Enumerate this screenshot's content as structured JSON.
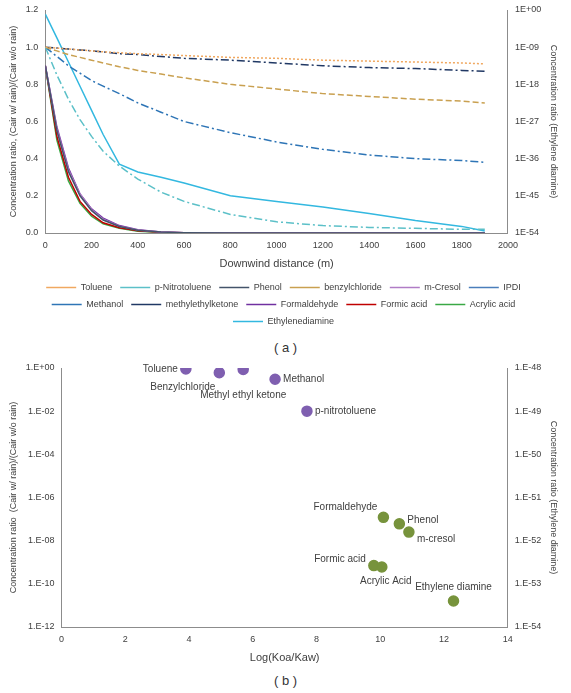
{
  "chart_data": [
    {
      "type": "line",
      "title": "( a )",
      "xlabel": "Downwind distance (m)",
      "ylabel": "Concentration ratio, (Cair w/ rain)/(Cair w/o rain)",
      "y2label": "Concentration ratio (Ethylene diamine)",
      "x": [
        0,
        50,
        100,
        150,
        200,
        250,
        320,
        400,
        500,
        600,
        800,
        1000,
        1200,
        1400,
        1600,
        1800,
        1900
      ],
      "xlim": [
        0,
        2000
      ],
      "xticks": [
        0,
        200,
        400,
        600,
        800,
        1000,
        1200,
        1400,
        1600,
        1800,
        2000
      ],
      "ylim": [
        0,
        1.2
      ],
      "yticks": [
        {
          "value": 0,
          "label": "0.0"
        },
        {
          "value": 0.2,
          "label": "0.2"
        },
        {
          "value": 0.4,
          "label": "0.4"
        },
        {
          "value": 0.6,
          "label": "0.6"
        },
        {
          "value": 0.8,
          "label": "0.8"
        },
        {
          "value": 1,
          "label": "1.0"
        },
        {
          "value": 1.2,
          "label": "1.2"
        }
      ],
      "y2lim": [
        1e-54,
        1
      ],
      "y2ticks": [
        {
          "value": 1,
          "label": "1E+00"
        },
        {
          "value": 1e-09,
          "label": "1E-09"
        },
        {
          "value": 1e-18,
          "label": "1E-18"
        },
        {
          "value": 1e-27,
          "label": "1E-27"
        },
        {
          "value": 1e-36,
          "label": "1E-36"
        },
        {
          "value": 1e-45,
          "label": "1E-45"
        },
        {
          "value": 1e-54,
          "label": "1E-54"
        }
      ],
      "log": "y2",
      "grid": false,
      "legend": "bottom",
      "series": [
        {
          "name": "Toluene",
          "color": "#f0a860",
          "line_style": "dotted",
          "values": [
            1.0,
            0.995,
            0.99,
            0.985,
            0.98,
            0.975,
            0.97,
            0.965,
            0.96,
            0.955,
            0.945,
            0.94,
            0.93,
            0.925,
            0.92,
            0.915,
            0.91
          ]
        },
        {
          "name": "p-Nitrotoluene",
          "color": "#5cc0c8",
          "line_style": "dashdot",
          "values": [
            1.0,
            0.85,
            0.72,
            0.61,
            0.52,
            0.44,
            0.36,
            0.29,
            0.22,
            0.17,
            0.1,
            0.06,
            0.04,
            0.03,
            0.025,
            0.02,
            0.02
          ]
        },
        {
          "name": "Phenol",
          "color": "#44546a",
          "line_style": "solid",
          "values": [
            0.9,
            0.55,
            0.33,
            0.2,
            0.12,
            0.07,
            0.035,
            0.015,
            0.005,
            0.002,
            0,
            0,
            0,
            0,
            0,
            0,
            0
          ]
        },
        {
          "name": "benzylchloride",
          "color": "#c9a050",
          "line_style": "dashed",
          "values": [
            1.0,
            0.98,
            0.96,
            0.945,
            0.93,
            0.915,
            0.895,
            0.875,
            0.855,
            0.835,
            0.8,
            0.775,
            0.75,
            0.735,
            0.72,
            0.71,
            0.7
          ]
        },
        {
          "name": "m-Cresol",
          "color": "#b07cc6",
          "line_style": "solid",
          "values": [
            0.9,
            0.56,
            0.34,
            0.21,
            0.125,
            0.075,
            0.037,
            0.016,
            0.005,
            0.002,
            0,
            0,
            0,
            0,
            0,
            0,
            0
          ]
        },
        {
          "name": "IPDI",
          "color": "#4a7ebb",
          "line_style": "dashdot",
          "values": [
            null,
            null,
            null,
            null,
            null,
            null,
            null,
            null,
            null,
            null,
            null,
            null,
            null,
            null,
            null,
            null,
            null
          ]
        },
        {
          "name": "Methanol",
          "color": "#2e75b6",
          "line_style": "dashdot",
          "values": [
            1.0,
            0.95,
            0.9,
            0.86,
            0.82,
            0.79,
            0.75,
            0.7,
            0.65,
            0.6,
            0.54,
            0.49,
            0.45,
            0.42,
            0.4,
            0.39,
            0.38
          ]
        },
        {
          "name": "methylethylketone",
          "color": "#203864",
          "line_style": "dashdot",
          "values": [
            1.0,
            0.995,
            0.99,
            0.985,
            0.98,
            0.975,
            0.965,
            0.96,
            0.95,
            0.94,
            0.93,
            0.915,
            0.9,
            0.89,
            0.885,
            0.875,
            0.87
          ]
        },
        {
          "name": "Formaldehyde",
          "color": "#7030a0",
          "line_style": "solid",
          "values": [
            0.9,
            0.57,
            0.35,
            0.21,
            0.13,
            0.08,
            0.04,
            0.018,
            0.006,
            0.002,
            0,
            0,
            0,
            0,
            0,
            0,
            0
          ]
        },
        {
          "name": "Formic acid",
          "color": "#c00000",
          "line_style": "solid",
          "values": [
            0.9,
            0.52,
            0.3,
            0.17,
            0.1,
            0.055,
            0.028,
            0.012,
            0.004,
            0.0015,
            0,
            0,
            0,
            0,
            0,
            0,
            0
          ]
        },
        {
          "name": "Acrylic acid",
          "color": "#3aa845",
          "line_style": "solid",
          "values": [
            0.9,
            0.5,
            0.28,
            0.16,
            0.09,
            0.05,
            0.025,
            0.01,
            0.003,
            0.001,
            0,
            0,
            0,
            0,
            0,
            0,
            0
          ]
        },
        {
          "name": "Ethylenediamine",
          "color": "#33b8e0",
          "line_style": "solid",
          "axis": "y2",
          "values": [
            0.1,
            1.8e-07,
            2.5e-13,
            3.5e-19,
            5e-25,
            7e-31,
            4.5e-38,
            6e-40,
            3e-41,
            1.3e-42,
            1e-45,
            4e-47,
            2e-48,
            5e-50,
            1e-51,
            4e-53,
            3e-54
          ]
        }
      ]
    },
    {
      "type": "scatter",
      "title": "( b )",
      "xlabel": "Log(Koa/Kaw)",
      "ylabel": "Concentration ratio  (Cair w/ rain)/(Cair w/o rain)",
      "y2label": "Concentration ratio (Ethylene diamine)",
      "xlim": [
        0,
        14
      ],
      "xticks": [
        0,
        2,
        4,
        6,
        8,
        10,
        12,
        14
      ],
      "ylim": [
        1e-12,
        1
      ],
      "yticks": [
        {
          "value": 1,
          "label": "1.E+00"
        },
        {
          "value": 0.01,
          "label": "1.E-02"
        },
        {
          "value": 0.0001,
          "label": "1.E-04"
        },
        {
          "value": 1e-06,
          "label": "1.E-06"
        },
        {
          "value": 1e-08,
          "label": "1.E-08"
        },
        {
          "value": 1e-10,
          "label": "1.E-10"
        },
        {
          "value": 1e-12,
          "label": "1.E-12"
        }
      ],
      "y2lim": [
        1e-54,
        1e-48
      ],
      "y2ticks": [
        {
          "value": 1e-48,
          "label": "1.E-48"
        },
        {
          "value": 1e-49,
          "label": "1.E-49"
        },
        {
          "value": 1e-50,
          "label": "1.E-50"
        },
        {
          "value": 1e-51,
          "label": "1.E-51"
        },
        {
          "value": 1e-52,
          "label": "1.E-52"
        },
        {
          "value": 1e-53,
          "label": "1.E-53"
        },
        {
          "value": 1e-54,
          "label": "1.E-54"
        }
      ],
      "log": [
        "y",
        "y2"
      ],
      "grid": false,
      "marker": "circle",
      "series": [
        {
          "color": "#7f5fb0",
          "x": [
            3.9,
            4.95,
            5.7,
            6.7,
            7.7
          ],
          "values": [
            0.9,
            0.6,
            0.85,
            0.3,
            0.01
          ],
          "point_labels": [
            "Toluene",
            "Benzylchloride",
            "Methyl ethyl ketone",
            "Methanol",
            "p-nitrotoluene"
          ]
        },
        {
          "color": "#77933c",
          "x": [
            10.1,
            10.6,
            10.9,
            9.8,
            10.05
          ],
          "values": [
            1.2e-07,
            6e-08,
            2.5e-08,
            7e-10,
            6e-10
          ],
          "point_labels": [
            "Formaldehyde",
            "Phenol",
            "m-cresol",
            "Formic acid",
            "Acrylic Acid"
          ]
        },
        {
          "color": "#77933c",
          "axis": "y2",
          "x": [
            12.3
          ],
          "values": [
            4e-54
          ],
          "point_labels": [
            "Ethylene diamine"
          ]
        }
      ]
    }
  ]
}
